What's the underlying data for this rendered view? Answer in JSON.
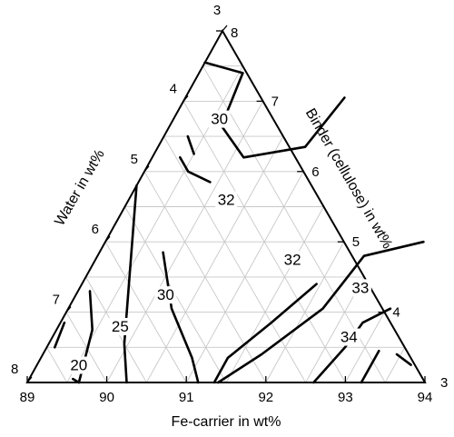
{
  "chart_data": {
    "type": "ternary-contour",
    "axes": {
      "bottom": {
        "label": "Fe-carrier in wt%",
        "range": [
          89,
          94
        ],
        "ticks": [
          "89",
          "90",
          "91",
          "92",
          "93",
          "94"
        ]
      },
      "right": {
        "label": "Binder (cellulose) in wt%",
        "range": [
          3,
          8
        ],
        "ticks": [
          "3",
          "4",
          "5",
          "6",
          "7",
          "8"
        ]
      },
      "left": {
        "label": "Water in wt%",
        "range": [
          3,
          8
        ],
        "ticks": [
          "3",
          "4",
          "5",
          "6",
          "7",
          "8"
        ]
      }
    },
    "grid": true,
    "contour_labels": [
      {
        "text": "20",
        "fe": 89.55,
        "binder": 3.2
      },
      {
        "text": "25",
        "fe": 89.8,
        "binder": 3.75
      },
      {
        "text": "30",
        "fe": 90.15,
        "binder": 4.2
      },
      {
        "text": "30",
        "fe": 89.6,
        "binder": 6.7
      },
      {
        "text": "32",
        "fe": 90.25,
        "binder": 5.55
      },
      {
        "text": "32",
        "fe": 91.5,
        "binder": 4.7
      },
      {
        "text": "33",
        "fe": 92.55,
        "binder": 4.3
      },
      {
        "text": "34",
        "fe": 92.75,
        "binder": 3.6
      }
    ],
    "contours": [
      {
        "level": "20",
        "points": [
          [
            89.05,
            3.85
          ],
          [
            89.1,
            3.5
          ]
        ]
      },
      {
        "level": "20",
        "points": [
          [
            89.55,
            3.05
          ],
          [
            89.65,
            3.0
          ]
        ]
      },
      {
        "level": "25",
        "points": [
          [
            89.15,
            4.3
          ],
          [
            89.45,
            3.75
          ],
          [
            89.65,
            3.0
          ]
        ]
      },
      {
        "level": "30",
        "points": [
          [
            89.0,
            5.8
          ],
          [
            89.95,
            3.55
          ],
          [
            90.25,
            3.0
          ]
        ]
      },
      {
        "level": "30",
        "points": [
          [
            89.8,
            4.85
          ],
          [
            90.3,
            4.05
          ],
          [
            90.9,
            3.35
          ],
          [
            91.15,
            3.0
          ]
        ]
      },
      {
        "level": "32",
        "points": [
          [
            89.35,
            6.2
          ],
          [
            89.55,
            6.0
          ],
          [
            89.9,
            5.85
          ]
        ]
      },
      {
        "level": "32",
        "points": [
          [
            89.3,
            6.5
          ],
          [
            89.5,
            6.25
          ]
        ]
      },
      {
        "level": "32",
        "points": [
          [
            91.35,
            3.0
          ],
          [
            91.35,
            3.35
          ],
          [
            91.65,
            3.85
          ],
          [
            91.95,
            4.4
          ]
        ]
      },
      {
        "level": "32",
        "points": [
          [
            91.4,
            3.0
          ],
          [
            91.75,
            3.4
          ],
          [
            92.2,
            4.05
          ],
          [
            92.35,
            4.8
          ],
          [
            93.0,
            5.0
          ]
        ]
      },
      {
        "level": "33",
        "points": [
          [
            92.6,
            3.0
          ],
          [
            92.75,
            3.5
          ],
          [
            92.8,
            3.85
          ],
          [
            93.05,
            4.05
          ]
        ]
      },
      {
        "level": "34",
        "points": [
          [
            93.2,
            3.0
          ],
          [
            93.2,
            3.45
          ]
        ]
      },
      {
        "level": "34",
        "points": [
          [
            93.45,
            3.4
          ],
          [
            93.7,
            3.25
          ]
        ]
      },
      {
        "level": "30",
        "points": [
          [
            89.0,
            7.55
          ],
          [
            89.55,
            7.4
          ],
          [
            89.65,
            6.65
          ],
          [
            90.15,
            6.2
          ],
          [
            90.85,
            6.35
          ],
          [
            91.0,
            7.05
          ]
        ]
      }
    ]
  }
}
